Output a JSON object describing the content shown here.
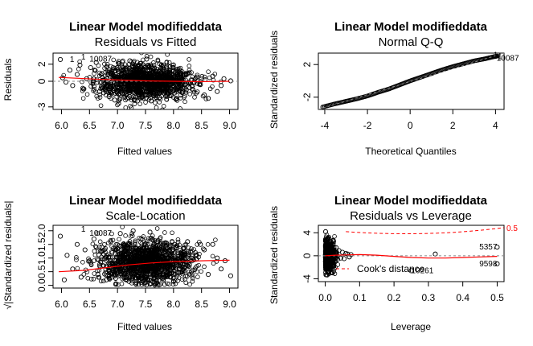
{
  "chart_data": [
    {
      "type": "scatter",
      "title": "Linear Model modifieddata",
      "subtitle": "Residuals vs Fitted",
      "xlabel": "Fitted values",
      "ylabel": "Residuals",
      "xlim": [
        5.85,
        9.15
      ],
      "ylim": [
        -3.3,
        3.3
      ],
      "xticks": [
        "6.0",
        "6.5",
        "7.0",
        "7.5",
        "8.0",
        "8.5",
        "9.0"
      ],
      "yticks": [
        "-3",
        "0",
        "2"
      ],
      "reference_line": 0,
      "smooth_line": [
        [
          5.95,
          0.45
        ],
        [
          6.3,
          0.35
        ],
        [
          6.6,
          0.25
        ],
        [
          7.0,
          0.15
        ],
        [
          7.5,
          0.05
        ],
        [
          8.0,
          0.0
        ],
        [
          8.5,
          -0.05
        ],
        [
          9.0,
          0.0
        ]
      ],
      "labeled_points": [
        {
          "label": "1",
          "x": 6.35,
          "y": 2.85
        },
        {
          "label": "10087",
          "x": 6.5,
          "y": 2.6
        },
        {
          "label": "1",
          "x": 6.15,
          "y": 2.55
        }
      ],
      "scatter": [
        [
          5.98,
          2.55
        ],
        [
          6.02,
          0.4
        ],
        [
          6.08,
          -0.1
        ],
        [
          6.15,
          1.3
        ],
        [
          6.2,
          -0.5
        ],
        [
          6.28,
          0.8
        ],
        [
          6.33,
          1.9
        ],
        [
          6.4,
          -0.9
        ],
        [
          6.45,
          0.3
        ],
        [
          6.52,
          1.6
        ],
        [
          6.58,
          -0.6
        ],
        [
          6.62,
          2.2
        ],
        [
          6.68,
          -1.2
        ],
        [
          6.72,
          0.9
        ],
        [
          6.78,
          -0.3
        ],
        [
          6.85,
          -1.8
        ],
        [
          6.9,
          1.1
        ],
        [
          6.95,
          -2.2
        ],
        [
          7.02,
          -2.6
        ],
        [
          7.08,
          1.8
        ],
        [
          7.15,
          -1.5
        ],
        [
          7.22,
          2.4
        ],
        [
          7.3,
          -2.1
        ],
        [
          7.38,
          1.5
        ],
        [
          7.45,
          -1.1
        ],
        [
          7.52,
          2.6
        ],
        [
          7.6,
          -2.3
        ],
        [
          7.68,
          1.2
        ],
        [
          7.75,
          -1.9
        ],
        [
          7.82,
          0.9
        ],
        [
          7.9,
          -1.4
        ],
        [
          7.98,
          1.6
        ],
        [
          8.05,
          -2.0
        ],
        [
          8.12,
          0.7
        ],
        [
          8.2,
          -0.8
        ],
        [
          8.28,
          1.0
        ],
        [
          8.35,
          -1.0
        ],
        [
          8.42,
          0.5
        ],
        [
          8.48,
          -0.4
        ],
        [
          8.55,
          -1.6
        ],
        [
          8.62,
          -2.0
        ],
        [
          8.7,
          0.6
        ],
        [
          8.78,
          -1.2
        ],
        [
          8.85,
          -0.5
        ],
        [
          8.9,
          0.3
        ],
        [
          9.02,
          0.05
        ]
      ]
    },
    {
      "type": "scatter",
      "title": "Linear Model modifieddata",
      "subtitle": "Normal Q-Q",
      "xlabel": "Theoretical Quantiles",
      "ylabel": "Standardized residuals",
      "xlim": [
        -4.3,
        4.4
      ],
      "ylim": [
        -3.5,
        3.4
      ],
      "xticks": [
        "-4",
        "-2",
        "0",
        "2",
        "4"
      ],
      "yticks": [
        "-2",
        "2"
      ],
      "reference_line": [
        [
          -4.3,
          -3.5
        ],
        [
          4.4,
          3.4
        ]
      ],
      "labeled_points": [
        {
          "label": "1",
          "x": 3.9,
          "y": 3.15
        },
        {
          "label": "10087",
          "x": 4.05,
          "y": 2.75
        },
        {
          "label": "1",
          "x": 4.1,
          "y": 2.95
        }
      ],
      "curve": [
        [
          -4.1,
          -3.2
        ],
        [
          -3.5,
          -2.8
        ],
        [
          -3.0,
          -2.5
        ],
        [
          -2.5,
          -2.2
        ],
        [
          -2.0,
          -1.85
        ],
        [
          -1.5,
          -1.4
        ],
        [
          -1.0,
          -1.0
        ],
        [
          -0.5,
          -0.5
        ],
        [
          0.0,
          0.0
        ],
        [
          0.5,
          0.45
        ],
        [
          1.0,
          0.9
        ],
        [
          1.5,
          1.35
        ],
        [
          2.0,
          1.75
        ],
        [
          2.5,
          2.1
        ],
        [
          3.0,
          2.45
        ],
        [
          3.5,
          2.7
        ],
        [
          3.9,
          2.95
        ],
        [
          4.1,
          3.05
        ]
      ]
    },
    {
      "type": "scatter",
      "title": "Linear Model modifieddata",
      "subtitle": "Scale-Location",
      "xlabel": "Fitted values",
      "ylabel": "√|Standardized residuals|",
      "xlim": [
        5.85,
        9.15
      ],
      "ylim": [
        -0.1,
        2.2
      ],
      "xticks": [
        "6.0",
        "6.5",
        "7.0",
        "7.5",
        "8.0",
        "8.5",
        "9.0"
      ],
      "yticks": [
        "0.0",
        "0.5",
        "1.0",
        "1.5",
        "2.0"
      ],
      "smooth_line": [
        [
          5.95,
          0.5
        ],
        [
          6.4,
          0.55
        ],
        [
          6.8,
          0.65
        ],
        [
          7.2,
          0.75
        ],
        [
          7.6,
          0.82
        ],
        [
          8.0,
          0.87
        ],
        [
          8.5,
          0.9
        ],
        [
          9.0,
          0.92
        ]
      ],
      "labeled_points": [
        {
          "label": "1",
          "x": 6.35,
          "y": 2.05
        },
        {
          "label": "10087",
          "x": 6.5,
          "y": 1.9
        }
      ],
      "scatter": [
        [
          5.98,
          1.8
        ],
        [
          6.05,
          0.2
        ],
        [
          6.1,
          1.1
        ],
        [
          6.2,
          0.6
        ],
        [
          6.28,
          1.5
        ],
        [
          6.35,
          0.3
        ],
        [
          6.42,
          1.3
        ],
        [
          6.5,
          0.9
        ],
        [
          6.58,
          1.7
        ],
        [
          6.65,
          0.4
        ],
        [
          6.72,
          1.4
        ],
        [
          6.8,
          0.2
        ],
        [
          6.88,
          1.6
        ],
        [
          6.95,
          0.7
        ],
        [
          7.05,
          1.9
        ],
        [
          7.12,
          0.3
        ],
        [
          7.2,
          1.5
        ],
        [
          7.28,
          2.0
        ],
        [
          7.35,
          0.5
        ],
        [
          7.42,
          1.7
        ],
        [
          7.5,
          1.2
        ],
        [
          7.58,
          1.95
        ],
        [
          7.65,
          0.4
        ],
        [
          7.72,
          1.6
        ],
        [
          7.8,
          0.8
        ],
        [
          7.88,
          1.4
        ],
        [
          7.95,
          0.3
        ],
        [
          8.02,
          1.5
        ],
        [
          8.1,
          0.6
        ],
        [
          8.18,
          1.2
        ],
        [
          8.25,
          1.6
        ],
        [
          8.32,
          0.5
        ],
        [
          8.4,
          1.1
        ],
        [
          8.48,
          1.5
        ],
        [
          8.55,
          1.3
        ],
        [
          8.62,
          0.4
        ],
        [
          8.7,
          1.5
        ],
        [
          8.78,
          1.0
        ],
        [
          8.85,
          0.6
        ],
        [
          8.92,
          0.9
        ],
        [
          9.02,
          0.35
        ]
      ]
    },
    {
      "type": "scatter",
      "title": "Linear Model modifieddata",
      "subtitle": "Residuals vs Leverage",
      "xlabel": "Leverage",
      "ylabel": "Standardized residuals",
      "xlim": [
        -0.02,
        0.52
      ],
      "ylim": [
        -4.5,
        5.3
      ],
      "xticks": [
        "0.0",
        "0.1",
        "0.2",
        "0.3",
        "0.4",
        "0.5"
      ],
      "yticks": [
        "-4",
        "0",
        "4"
      ],
      "reference_line": 0,
      "cooks_label": "Cook's distance",
      "cooks_levels": [
        {
          "label": "0.5",
          "level": 0.5
        }
      ],
      "smooth_line": [
        [
          0.0,
          0.0
        ],
        [
          0.03,
          0.1
        ],
        [
          0.06,
          0.15
        ],
        [
          0.1,
          0.2
        ],
        [
          0.15,
          0.1
        ],
        [
          0.2,
          -0.1
        ],
        [
          0.25,
          -0.3
        ],
        [
          0.3,
          -0.4
        ],
        [
          0.35,
          -0.4
        ],
        [
          0.4,
          -0.3
        ],
        [
          0.45,
          -0.2
        ],
        [
          0.5,
          -0.1
        ]
      ],
      "labeled_points": [
        {
          "label": "5357",
          "x": 0.5,
          "y": 1.5
        },
        {
          "label": "9598",
          "x": 0.5,
          "y": -1.4
        },
        {
          "label": "10261",
          "x": 0.25,
          "y": -2.6
        }
      ],
      "scatter": [
        [
          0.001,
          4.2
        ],
        [
          0.002,
          -3.3
        ],
        [
          0.003,
          2.8
        ],
        [
          0.004,
          -2.4
        ],
        [
          0.005,
          1.9
        ],
        [
          0.006,
          -1.7
        ],
        [
          0.008,
          3.1
        ],
        [
          0.01,
          -2.9
        ],
        [
          0.012,
          1.2
        ],
        [
          0.015,
          -1.0
        ],
        [
          0.018,
          2.0
        ],
        [
          0.02,
          -1.6
        ],
        [
          0.024,
          0.8
        ],
        [
          0.028,
          -0.9
        ],
        [
          0.032,
          1.4
        ],
        [
          0.036,
          -0.6
        ],
        [
          0.04,
          0.9
        ],
        [
          0.045,
          -0.4
        ],
        [
          0.05,
          0.6
        ],
        [
          0.055,
          -0.5
        ],
        [
          0.06,
          0.4
        ],
        [
          0.065,
          0.3
        ],
        [
          0.07,
          -0.2
        ],
        [
          0.075,
          0.2
        ],
        [
          0.25,
          -2.6
        ],
        [
          0.32,
          0.3
        ],
        [
          0.5,
          1.5
        ],
        [
          0.5,
          -1.4
        ]
      ]
    }
  ]
}
